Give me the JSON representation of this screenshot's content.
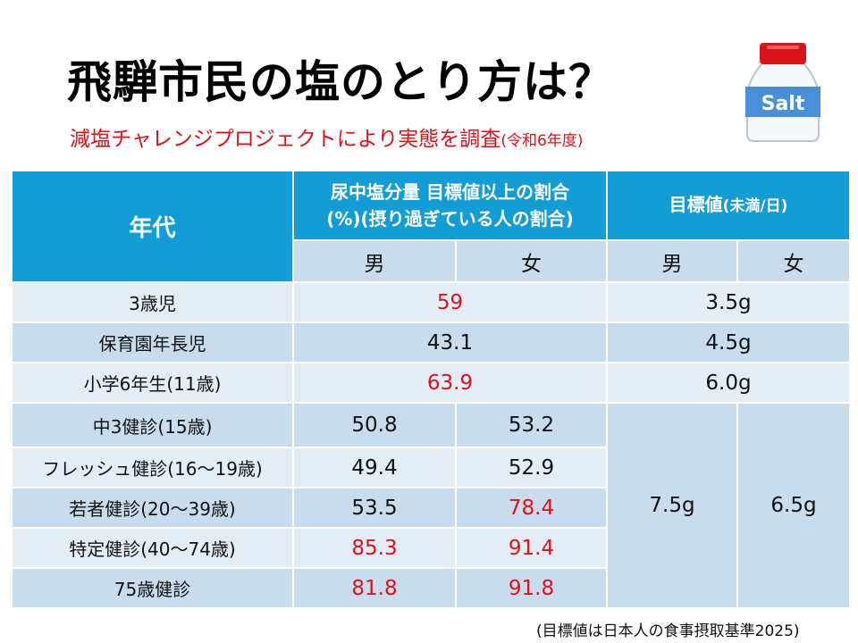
{
  "title": "飛騨市民の塩のとり方は？",
  "subtitle": {
    "main": "減塩チャレンジプロジェクトにより実態を調査",
    "suffix": "(令和6年度)"
  },
  "salt_label": "Salt",
  "table": {
    "headers": {
      "age": "年代",
      "ratio_line1": "尿中塩分量 目標値以上の割合",
      "ratio_line2": "(%)(摂り過ぎている人の割合)",
      "target": "目標値",
      "target_suffix": "(未満/日)",
      "male": "男",
      "female": "女"
    },
    "rows": [
      {
        "age": "3歳児",
        "ratio": "59",
        "ratio_red": true,
        "target": "3.5g"
      },
      {
        "age": "保育園年長児",
        "ratio": "43.1",
        "ratio_red": false,
        "target": "4.5g"
      },
      {
        "age": "小学6年生(11歳)",
        "ratio": "63.9",
        "ratio_red": true,
        "target": "6.0g"
      },
      {
        "age": "中3健診(15歳)",
        "male": "50.8",
        "female": "53.2",
        "male_red": false,
        "female_red": false
      },
      {
        "age": "フレッシュ健診(16～19歳)",
        "male": "49.4",
        "female": "52.9",
        "male_red": false,
        "female_red": false
      },
      {
        "age": "若者健診(20～39歳)",
        "male": "53.5",
        "female": "78.4",
        "male_red": false,
        "female_red": true
      },
      {
        "age": "特定健診(40～74歳)",
        "male": "85.3",
        "female": "91.4",
        "male_red": true,
        "female_red": true
      },
      {
        "age": "75歳健診",
        "male": "81.8",
        "female": "91.8",
        "male_red": true,
        "female_red": true
      }
    ],
    "adult_target": {
      "male": "7.5g",
      "female": "6.5g"
    }
  },
  "footnote": "(目標値は日本人の食事摂取基準2025)",
  "colors": {
    "header": "#149cd4",
    "red": "#e0101a",
    "row_light": "#e4edf6",
    "row_dark": "#c8dcee"
  }
}
